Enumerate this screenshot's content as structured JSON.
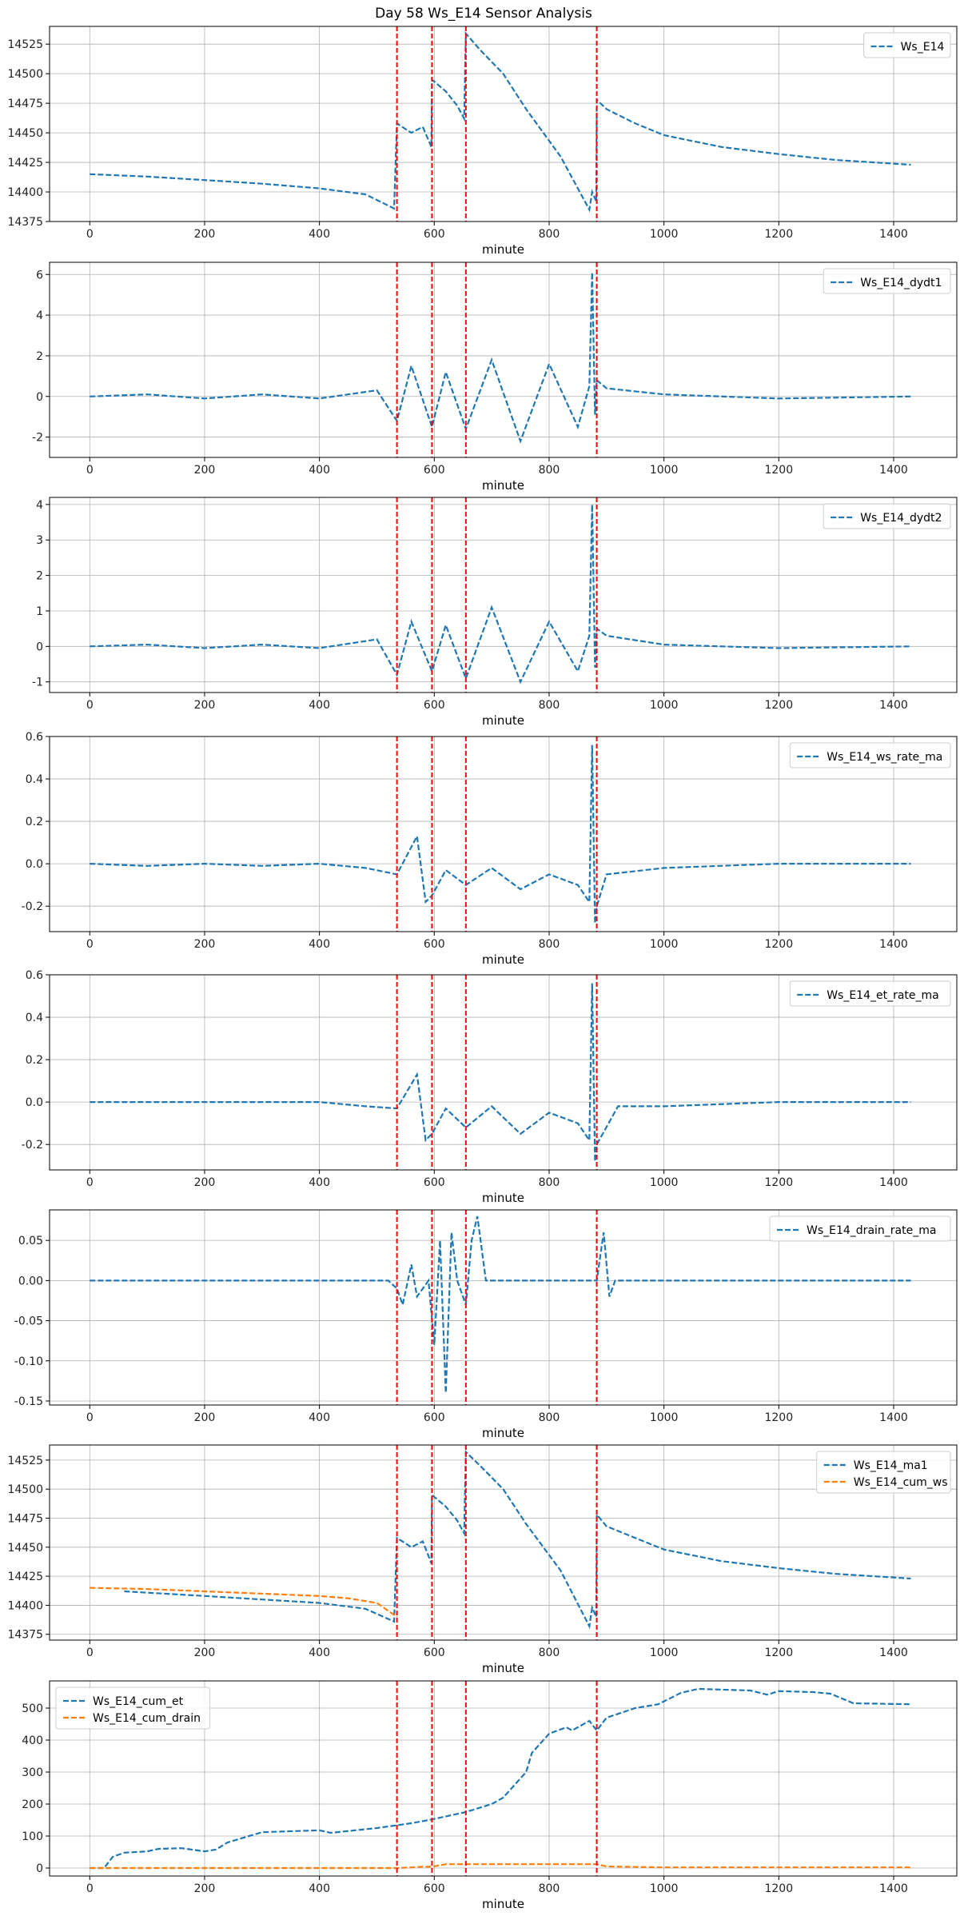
{
  "colors": {
    "series1": "#1f77b4",
    "series2": "#ff7f0e",
    "event": "#ff0000",
    "grid": "#b0b0b0"
  },
  "chart_data": [
    {
      "type": "line",
      "title": "Day 58 Ws_E14 Sensor Analysis",
      "xlabel": "minute",
      "xlim": [
        -70,
        1510
      ],
      "ylim": [
        14375,
        14540
      ],
      "xticks": [
        0,
        200,
        400,
        600,
        800,
        1000,
        1200,
        1400
      ],
      "yticks": [
        14375,
        14400,
        14425,
        14450,
        14475,
        14500,
        14525
      ],
      "vlines": [
        535,
        596,
        655,
        883
      ],
      "legend_position": "upper right",
      "series": [
        {
          "name": "Ws_E14",
          "x": [
            0,
            100,
            200,
            300,
            400,
            480,
            530,
            535,
            560,
            580,
            595,
            596,
            620,
            640,
            652,
            655,
            680,
            720,
            760,
            820,
            870,
            875,
            882,
            883,
            900,
            950,
            1000,
            1100,
            1200,
            1300,
            1430
          ],
          "y": [
            14415,
            14413,
            14410,
            14407,
            14403,
            14398,
            14386,
            14458,
            14450,
            14455,
            14438,
            14495,
            14485,
            14473,
            14462,
            14534,
            14520,
            14500,
            14470,
            14430,
            14385,
            14400,
            14392,
            14478,
            14470,
            14458,
            14448,
            14438,
            14432,
            14427,
            14423
          ]
        }
      ]
    },
    {
      "type": "line",
      "xlabel": "minute",
      "xlim": [
        -70,
        1510
      ],
      "ylim": [
        -3,
        6.6
      ],
      "xticks": [
        0,
        200,
        400,
        600,
        800,
        1000,
        1200,
        1400
      ],
      "yticks": [
        -2,
        0,
        2,
        4,
        6
      ],
      "vlines": [
        535,
        596,
        655,
        883
      ],
      "legend_position": "upper right",
      "series": [
        {
          "name": "Ws_E14_dydt1",
          "x": [
            0,
            100,
            200,
            300,
            400,
            500,
            535,
            560,
            596,
            620,
            655,
            700,
            750,
            800,
            850,
            870,
            875,
            880,
            883,
            900,
            1000,
            1200,
            1430
          ],
          "y": [
            0,
            0.1,
            -0.1,
            0.1,
            -0.1,
            0.3,
            -1.2,
            1.5,
            -1.5,
            1.2,
            -1.6,
            1.8,
            -2.2,
            1.6,
            -1.5,
            0.5,
            6.1,
            -0.9,
            0.8,
            0.4,
            0.1,
            -0.1,
            0
          ]
        }
      ]
    },
    {
      "type": "line",
      "xlabel": "minute",
      "xlim": [
        -70,
        1510
      ],
      "ylim": [
        -1.3,
        4.2
      ],
      "xticks": [
        0,
        200,
        400,
        600,
        800,
        1000,
        1200,
        1400
      ],
      "yticks": [
        -1,
        0,
        1,
        2,
        3,
        4
      ],
      "vlines": [
        535,
        596,
        655,
        883
      ],
      "legend_position": "upper right",
      "series": [
        {
          "name": "Ws_E14_dydt2",
          "x": [
            0,
            100,
            200,
            300,
            400,
            500,
            535,
            560,
            596,
            620,
            655,
            700,
            750,
            800,
            850,
            870,
            875,
            880,
            883,
            900,
            1000,
            1200,
            1430
          ],
          "y": [
            0,
            0.05,
            -0.05,
            0.05,
            -0.05,
            0.2,
            -0.8,
            0.7,
            -0.7,
            0.6,
            -0.9,
            1.1,
            -1.0,
            0.7,
            -0.7,
            0.3,
            4.0,
            -0.6,
            0.5,
            0.3,
            0.05,
            -0.05,
            0
          ]
        }
      ]
    },
    {
      "type": "line",
      "xlabel": "minute",
      "xlim": [
        -70,
        1510
      ],
      "ylim": [
        -0.32,
        0.6
      ],
      "xticks": [
        0,
        200,
        400,
        600,
        800,
        1000,
        1200,
        1400
      ],
      "yticks": [
        -0.2,
        0,
        0.2,
        0.4,
        0.6
      ],
      "vlines": [
        535,
        596,
        655,
        883
      ],
      "legend_position": "upper right",
      "series": [
        {
          "name": "Ws_E14_ws_rate_ma",
          "x": [
            0,
            100,
            200,
            300,
            400,
            480,
            535,
            570,
            585,
            596,
            620,
            655,
            700,
            750,
            800,
            850,
            870,
            875,
            880,
            883,
            900,
            1000,
            1200,
            1430
          ],
          "y": [
            0,
            -0.01,
            0,
            -0.01,
            0,
            -0.02,
            -0.05,
            0.13,
            -0.18,
            -0.15,
            -0.03,
            -0.1,
            -0.02,
            -0.12,
            -0.05,
            -0.1,
            -0.18,
            0.56,
            -0.28,
            -0.2,
            -0.05,
            -0.02,
            0,
            0
          ]
        }
      ]
    },
    {
      "type": "line",
      "xlabel": "minute",
      "xlim": [
        -70,
        1510
      ],
      "ylim": [
        -0.32,
        0.6
      ],
      "xticks": [
        0,
        200,
        400,
        600,
        800,
        1000,
        1200,
        1400
      ],
      "yticks": [
        -0.2,
        0,
        0.2,
        0.4,
        0.6
      ],
      "vlines": [
        535,
        596,
        655,
        883
      ],
      "legend_position": "upper right",
      "series": [
        {
          "name": "Ws_E14_et_rate_ma",
          "x": [
            0,
            100,
            200,
            300,
            400,
            480,
            535,
            570,
            585,
            596,
            620,
            655,
            700,
            750,
            800,
            850,
            870,
            875,
            880,
            883,
            920,
            1000,
            1200,
            1430
          ],
          "y": [
            0,
            0,
            0,
            0,
            0,
            -0.02,
            -0.03,
            0.13,
            -0.18,
            -0.15,
            -0.03,
            -0.12,
            -0.02,
            -0.15,
            -0.05,
            -0.1,
            -0.18,
            0.56,
            -0.28,
            -0.2,
            -0.02,
            -0.02,
            0,
            0
          ]
        }
      ]
    },
    {
      "type": "line",
      "xlabel": "minute",
      "xlim": [
        -70,
        1510
      ],
      "ylim": [
        -0.155,
        0.088
      ],
      "xticks": [
        0,
        200,
        400,
        600,
        800,
        1000,
        1200,
        1400
      ],
      "yticks": [
        -0.15,
        -0.1,
        -0.05,
        0.0,
        0.05
      ],
      "vlines": [
        535,
        596,
        655,
        883
      ],
      "legend_position": "upper right",
      "series": [
        {
          "name": "Ws_E14_drain_rate_ma",
          "x": [
            0,
            520,
            535,
            545,
            560,
            570,
            590,
            600,
            610,
            620,
            630,
            640,
            655,
            665,
            675,
            690,
            883,
            895,
            905,
            915,
            1430
          ],
          "y": [
            0,
            0,
            -0.01,
            -0.03,
            0.02,
            -0.02,
            0,
            -0.08,
            0.05,
            -0.14,
            0.06,
            0,
            -0.03,
            0.05,
            0.08,
            0,
            0,
            0.06,
            -0.02,
            0,
            0
          ]
        }
      ]
    },
    {
      "type": "line",
      "xlabel": "minute",
      "xlim": [
        -70,
        1510
      ],
      "ylim": [
        14370,
        14538
      ],
      "xticks": [
        0,
        200,
        400,
        600,
        800,
        1000,
        1200,
        1400
      ],
      "yticks": [
        14375,
        14400,
        14425,
        14450,
        14475,
        14500,
        14525
      ],
      "vlines": [
        535,
        596,
        655,
        883
      ],
      "legend_position": "upper right",
      "series": [
        {
          "name": "Ws_E14_ma1",
          "x": [
            60,
            200,
            300,
            400,
            480,
            530,
            535,
            560,
            580,
            595,
            596,
            620,
            640,
            652,
            655,
            680,
            720,
            760,
            820,
            870,
            875,
            882,
            883,
            900,
            1000,
            1100,
            1200,
            1300,
            1430
          ],
          "y": [
            14412,
            14408,
            14405,
            14402,
            14397,
            14386,
            14458,
            14450,
            14455,
            14436,
            14495,
            14485,
            14473,
            14462,
            14532,
            14520,
            14500,
            14470,
            14430,
            14382,
            14398,
            14390,
            14478,
            14468,
            14448,
            14438,
            14432,
            14427,
            14423
          ]
        },
        {
          "name": "Ws_E14_cum_ws",
          "x": [
            0,
            100,
            200,
            300,
            400,
            450,
            500,
            535
          ],
          "y": [
            14415,
            14414,
            14412,
            14410,
            14408,
            14406,
            14402,
            14390
          ]
        }
      ]
    },
    {
      "type": "line",
      "xlabel": "minute",
      "xlim": [
        -70,
        1510
      ],
      "ylim": [
        -25,
        585
      ],
      "xticks": [
        0,
        200,
        400,
        600,
        800,
        1000,
        1200,
        1400
      ],
      "yticks": [
        0,
        100,
        200,
        300,
        400,
        500
      ],
      "vlines": [
        535,
        596,
        655,
        883
      ],
      "legend_position": "upper left",
      "series": [
        {
          "name": "Ws_E14_cum_et",
          "x": [
            0,
            25,
            40,
            60,
            100,
            120,
            160,
            200,
            220,
            240,
            300,
            400,
            420,
            500,
            560,
            596,
            655,
            700,
            720,
            760,
            770,
            800,
            830,
            840,
            870,
            883,
            900,
            950,
            990,
            1030,
            1060,
            1150,
            1180,
            1200,
            1260,
            1290,
            1330,
            1430
          ],
          "y": [
            0,
            0,
            35,
            48,
            52,
            60,
            62,
            52,
            58,
            80,
            112,
            118,
            110,
            125,
            140,
            152,
            175,
            200,
            220,
            300,
            360,
            420,
            440,
            430,
            460,
            430,
            470,
            500,
            512,
            548,
            560,
            555,
            542,
            553,
            550,
            545,
            515,
            512
          ]
        },
        {
          "name": "Ws_E14_cum_drain",
          "x": [
            0,
            535,
            560,
            580,
            596,
            620,
            655,
            700,
            800,
            883,
            900,
            1000,
            1430
          ],
          "y": [
            0,
            0,
            2,
            4,
            4,
            12,
            12,
            12,
            12,
            12,
            5,
            2,
            2
          ]
        }
      ]
    }
  ]
}
